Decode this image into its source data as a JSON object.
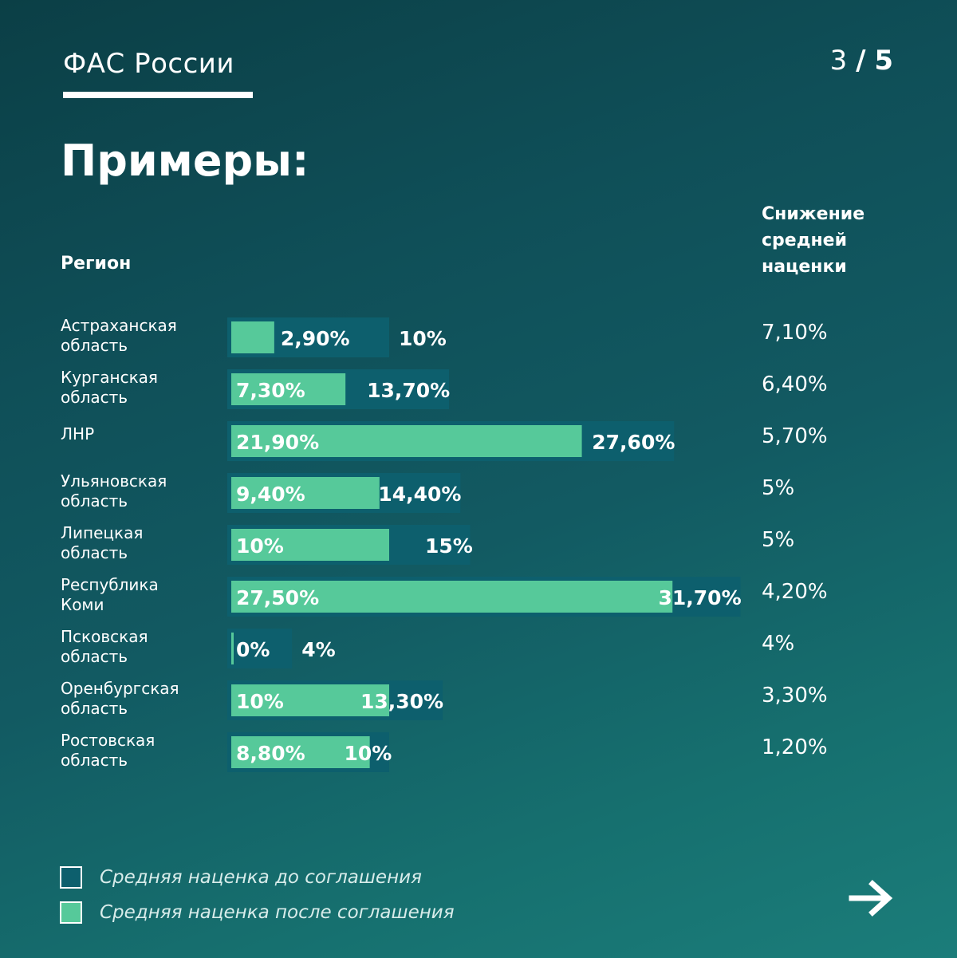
{
  "header": {
    "brand": "ФАС России",
    "page_current": "3",
    "page_sep": "/",
    "page_total": "5"
  },
  "page_title": "Примеры:",
  "columns": {
    "region": "Регион",
    "decrease": "Снижение\nсредней\nнаценки"
  },
  "legend": {
    "before": "Средняя наценка до соглашения",
    "after": "Средняя наценка после соглашения"
  },
  "colors": {
    "before_bar": "#0d5f6d",
    "after_bar": "#56c99a",
    "background": "#0f4f58"
  },
  "icons": {
    "next": "arrow-right-icon"
  },
  "chart_data": {
    "type": "bar",
    "orientation": "horizontal",
    "unit": "%",
    "categories": [
      [
        "Астраханская",
        "область"
      ],
      [
        "Курганская",
        "область"
      ],
      [
        "ЛНР"
      ],
      [
        "Ульяновская",
        "область"
      ],
      [
        "Липецкая",
        "область"
      ],
      [
        "Республика",
        "Коми"
      ],
      [
        "Псковская",
        "область"
      ],
      [
        "Оренбургская",
        "область"
      ],
      [
        "Ростовская",
        "область"
      ]
    ],
    "series": [
      {
        "name": "Средняя наценка до соглашения",
        "values": [
          10,
          13.7,
          27.6,
          14.4,
          15,
          31.7,
          4,
          13.3,
          10
        ],
        "labels": [
          "10%",
          "13,70%",
          "27,60%",
          "14,40%",
          "15%",
          "31,70%",
          "4%",
          "13,30%",
          "10%"
        ]
      },
      {
        "name": "Средняя наценка после соглашения",
        "values": [
          2.9,
          7.3,
          21.9,
          9.4,
          10,
          27.5,
          0,
          10,
          8.8
        ],
        "labels": [
          "2,90%",
          "7,30%",
          "21,90%",
          "9,40%",
          "10%",
          "27,50%",
          "0%",
          "10%",
          "8,80%"
        ]
      }
    ],
    "decrease": {
      "values": [
        7.1,
        6.4,
        5.7,
        5,
        5,
        4.2,
        4,
        3.3,
        1.2
      ],
      "labels": [
        "7,10%",
        "6,40%",
        "5,70%",
        "5%",
        "5%",
        "4,20%",
        "4%",
        "3,30%",
        "1,20%"
      ]
    },
    "grid": false,
    "legend_position": "bottom-left"
  }
}
